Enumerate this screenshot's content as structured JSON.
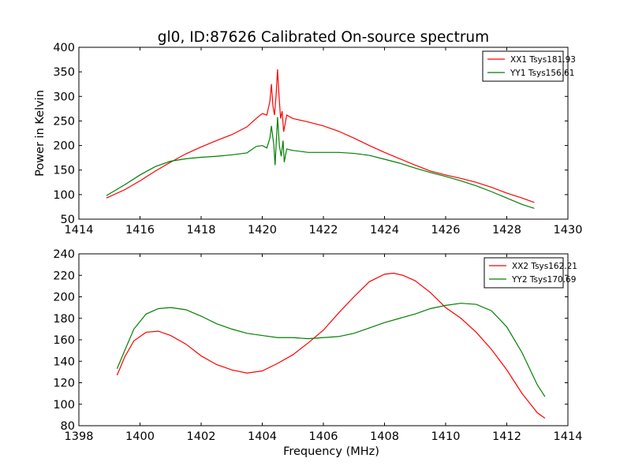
{
  "title": "gl0, ID:87626 Calibrated On-source spectrum",
  "chart_data": [
    {
      "type": "line",
      "ylabel": "Power in Kelvin",
      "xlabel": "",
      "xlim": [
        1414,
        1430
      ],
      "ylim": [
        50,
        400
      ],
      "xticks": [
        1414,
        1416,
        1418,
        1420,
        1422,
        1424,
        1426,
        1428,
        1430
      ],
      "yticks": [
        50,
        100,
        150,
        200,
        250,
        300,
        350,
        400
      ],
      "legend": "top-right",
      "series": [
        {
          "name": "XX1 Tsys181.93",
          "color": "#ff0000",
          "points": [
            [
              1414.9,
              93
            ],
            [
              1415.5,
              110
            ],
            [
              1416,
              128
            ],
            [
              1416.5,
              148
            ],
            [
              1417,
              166
            ],
            [
              1417.5,
              183
            ],
            [
              1418,
              197
            ],
            [
              1418.5,
              210
            ],
            [
              1419,
              222
            ],
            [
              1419.5,
              238
            ],
            [
              1419.8,
              255
            ],
            [
              1420,
              265
            ],
            [
              1420.15,
              262
            ],
            [
              1420.25,
              290
            ],
            [
              1420.3,
              325
            ],
            [
              1420.35,
              280
            ],
            [
              1420.4,
              262
            ],
            [
              1420.45,
              300
            ],
            [
              1420.5,
              355
            ],
            [
              1420.55,
              300
            ],
            [
              1420.6,
              255
            ],
            [
              1420.65,
              270
            ],
            [
              1420.7,
              228
            ],
            [
              1420.8,
              262
            ],
            [
              1421,
              255
            ],
            [
              1421.5,
              248
            ],
            [
              1422,
              240
            ],
            [
              1422.5,
              229
            ],
            [
              1423,
              215
            ],
            [
              1423.5,
              200
            ],
            [
              1424,
              186
            ],
            [
              1424.5,
              173
            ],
            [
              1425,
              160
            ],
            [
              1425.5,
              148
            ],
            [
              1426,
              140
            ],
            [
              1426.5,
              133
            ],
            [
              1427,
              125
            ],
            [
              1427.5,
              115
            ],
            [
              1428,
              103
            ],
            [
              1428.5,
              93
            ],
            [
              1428.9,
              84
            ]
          ]
        },
        {
          "name": "YY1 Tsys156.61",
          "color": "#008000",
          "points": [
            [
              1414.9,
              98
            ],
            [
              1415.5,
              120
            ],
            [
              1416,
              140
            ],
            [
              1416.5,
              157
            ],
            [
              1417,
              168
            ],
            [
              1417.5,
              173
            ],
            [
              1418,
              176
            ],
            [
              1418.5,
              178
            ],
            [
              1419,
              181
            ],
            [
              1419.5,
              185
            ],
            [
              1419.8,
              198
            ],
            [
              1420,
              200
            ],
            [
              1420.15,
              195
            ],
            [
              1420.25,
              215
            ],
            [
              1420.3,
              240
            ],
            [
              1420.38,
              200
            ],
            [
              1420.42,
              160
            ],
            [
              1420.5,
              258
            ],
            [
              1420.56,
              200
            ],
            [
              1420.62,
              178
            ],
            [
              1420.68,
              210
            ],
            [
              1420.72,
              166
            ],
            [
              1420.8,
              193
            ],
            [
              1421,
              190
            ],
            [
              1421.5,
              186
            ],
            [
              1422,
              186
            ],
            [
              1422.5,
              186
            ],
            [
              1423,
              184
            ],
            [
              1423.5,
              180
            ],
            [
              1424,
              172
            ],
            [
              1424.5,
              164
            ],
            [
              1425,
              154
            ],
            [
              1425.5,
              145
            ],
            [
              1426,
              137
            ],
            [
              1426.5,
              128
            ],
            [
              1427,
              118
            ],
            [
              1427.5,
              106
            ],
            [
              1428,
              93
            ],
            [
              1428.5,
              80
            ],
            [
              1428.9,
              72
            ]
          ]
        }
      ]
    },
    {
      "type": "line",
      "ylabel": "",
      "xlabel": "Frequency (MHz)",
      "xlim": [
        1398,
        1414
      ],
      "ylim": [
        80,
        240
      ],
      "xticks": [
        1398,
        1400,
        1402,
        1404,
        1406,
        1408,
        1410,
        1412,
        1414
      ],
      "yticks": [
        80,
        100,
        120,
        140,
        160,
        180,
        200,
        220,
        240
      ],
      "legend": "top-right",
      "series": [
        {
          "name": "XX2 Tsys162.21",
          "color": "#ff0000",
          "points": [
            [
              1399.25,
              127
            ],
            [
              1399.5,
              144
            ],
            [
              1399.8,
              159
            ],
            [
              1400.2,
              167
            ],
            [
              1400.6,
              168
            ],
            [
              1401,
              164
            ],
            [
              1401.5,
              156
            ],
            [
              1402,
              145
            ],
            [
              1402.5,
              137
            ],
            [
              1403,
              132
            ],
            [
              1403.5,
              129
            ],
            [
              1404,
              131
            ],
            [
              1404.5,
              138
            ],
            [
              1405,
              146
            ],
            [
              1405.5,
              157
            ],
            [
              1406,
              169
            ],
            [
              1406.5,
              185
            ],
            [
              1407,
              200
            ],
            [
              1407.5,
              214
            ],
            [
              1408,
              221
            ],
            [
              1408.3,
              222
            ],
            [
              1408.6,
              220
            ],
            [
              1409,
              215
            ],
            [
              1409.5,
              204
            ],
            [
              1410,
              190
            ],
            [
              1410.5,
              180
            ],
            [
              1411,
              167
            ],
            [
              1411.5,
              151
            ],
            [
              1412,
              132
            ],
            [
              1412.5,
              110
            ],
            [
              1413,
              92
            ],
            [
              1413.25,
              87
            ]
          ]
        },
        {
          "name": "YY2 Tsys170.69",
          "color": "#008000",
          "points": [
            [
              1399.25,
              133
            ],
            [
              1399.5,
              150
            ],
            [
              1399.8,
              170
            ],
            [
              1400.2,
              184
            ],
            [
              1400.6,
              189
            ],
            [
              1401,
              190
            ],
            [
              1401.5,
              188
            ],
            [
              1402,
              182
            ],
            [
              1402.5,
              175
            ],
            [
              1403,
              170
            ],
            [
              1403.5,
              166
            ],
            [
              1404,
              164
            ],
            [
              1404.5,
              162
            ],
            [
              1405,
              162
            ],
            [
              1405.5,
              161
            ],
            [
              1406,
              162
            ],
            [
              1406.5,
              163
            ],
            [
              1407,
              166
            ],
            [
              1407.5,
              171
            ],
            [
              1408,
              176
            ],
            [
              1408.5,
              180
            ],
            [
              1409,
              184
            ],
            [
              1409.5,
              189
            ],
            [
              1410,
              192
            ],
            [
              1410.5,
              194
            ],
            [
              1411,
              193
            ],
            [
              1411.5,
              187
            ],
            [
              1412,
              172
            ],
            [
              1412.5,
              148
            ],
            [
              1413,
              118
            ],
            [
              1413.25,
              107
            ]
          ]
        }
      ]
    }
  ]
}
